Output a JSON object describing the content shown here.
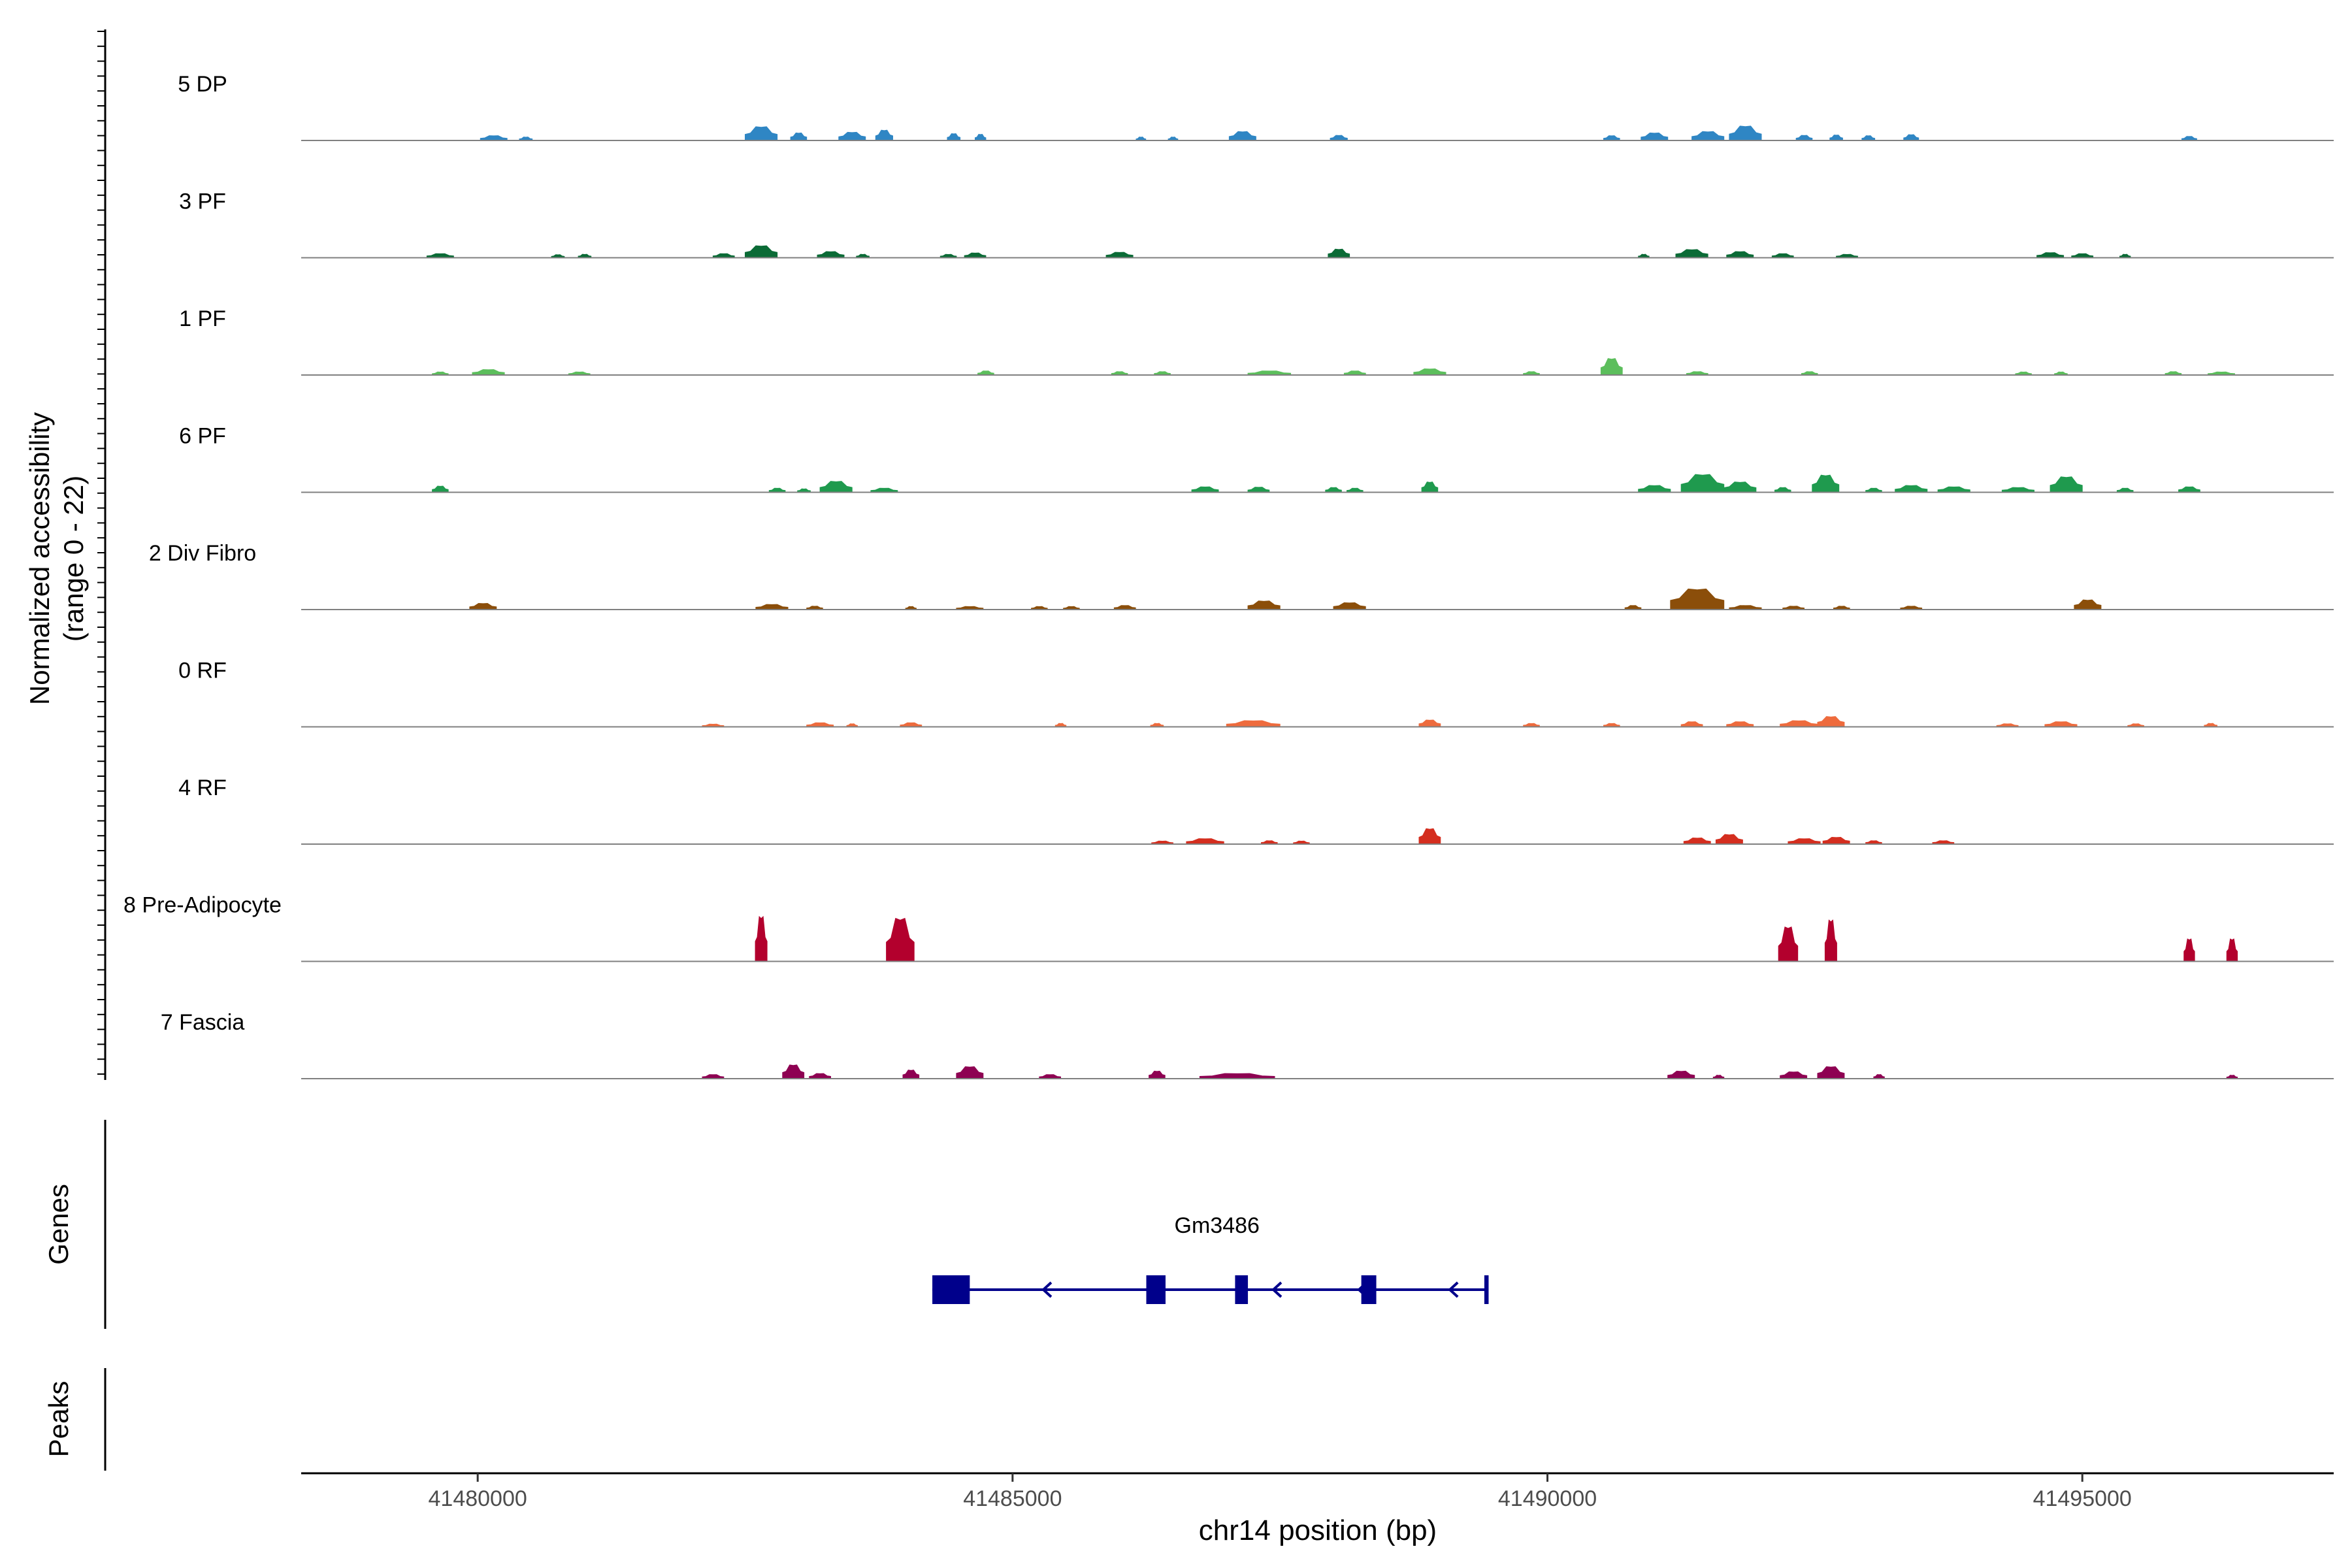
{
  "chart_data": {
    "type": "coverage-track",
    "title": "",
    "ylabel_line1": "Normalized accessibility",
    "ylabel_line2": "(range 0 - 22)",
    "ylim": [
      0,
      22
    ],
    "xlabel": "chr14 position (bp)",
    "xlim": [
      41478350,
      41497350
    ],
    "xticks": [
      41480000,
      41485000,
      41490000,
      41495000
    ],
    "tracks": [
      {
        "name": "5 DP",
        "color": "#2f86c4",
        "peaks": [
          [
            41480150,
            1.4,
            250
          ],
          [
            41480450,
            1.0,
            120
          ],
          [
            41482650,
            4.0,
            300
          ],
          [
            41483000,
            2.2,
            150
          ],
          [
            41483500,
            2.4,
            250
          ],
          [
            41483800,
            3.0,
            160
          ],
          [
            41484450,
            2.0,
            120
          ],
          [
            41484700,
            1.8,
            100
          ],
          [
            41486200,
            1.0,
            90
          ],
          [
            41486500,
            1.0,
            90
          ],
          [
            41487150,
            2.6,
            250
          ],
          [
            41488050,
            1.5,
            160
          ],
          [
            41490600,
            1.4,
            150
          ],
          [
            41491000,
            2.2,
            250
          ],
          [
            41491500,
            2.6,
            300
          ],
          [
            41491850,
            4.2,
            300
          ],
          [
            41492400,
            1.5,
            150
          ],
          [
            41492700,
            1.6,
            120
          ],
          [
            41493000,
            1.4,
            120
          ],
          [
            41493400,
            1.7,
            140
          ],
          [
            41496000,
            1.2,
            140
          ]
        ]
      },
      {
        "name": "3 PF",
        "color": "#0b6b36",
        "peaks": [
          [
            41479650,
            1.2,
            250
          ],
          [
            41480750,
            0.9,
            120
          ],
          [
            41481000,
            1.0,
            120
          ],
          [
            41482300,
            1.2,
            200
          ],
          [
            41482650,
            3.5,
            300
          ],
          [
            41483300,
            1.8,
            250
          ],
          [
            41483600,
            1.0,
            120
          ],
          [
            41484400,
            1.0,
            150
          ],
          [
            41484650,
            1.4,
            200
          ],
          [
            41486000,
            1.6,
            250
          ],
          [
            41488050,
            2.5,
            200
          ],
          [
            41490900,
            1.0,
            100
          ],
          [
            41491350,
            2.4,
            300
          ],
          [
            41491800,
            1.8,
            250
          ],
          [
            41492200,
            1.2,
            200
          ],
          [
            41492800,
            1.0,
            200
          ],
          [
            41494700,
            1.5,
            250
          ],
          [
            41495000,
            1.2,
            200
          ],
          [
            41495400,
            1.0,
            100
          ]
        ]
      },
      {
        "name": "1 PF",
        "color": "#5cbe5c",
        "peaks": [
          [
            41479650,
            0.9,
            150
          ],
          [
            41480100,
            1.6,
            300
          ],
          [
            41480950,
            0.9,
            200
          ],
          [
            41484750,
            1.2,
            150
          ],
          [
            41486000,
            1.0,
            150
          ],
          [
            41486400,
            1.0,
            150
          ],
          [
            41487400,
            1.2,
            400
          ],
          [
            41488200,
            1.2,
            200
          ],
          [
            41488900,
            1.8,
            300
          ],
          [
            41489850,
            1.0,
            150
          ],
          [
            41490600,
            4.8,
            200
          ],
          [
            41491400,
            1.0,
            200
          ],
          [
            41492450,
            1.0,
            150
          ],
          [
            41494450,
            0.9,
            150
          ],
          [
            41494800,
            0.9,
            120
          ],
          [
            41495850,
            1.0,
            150
          ],
          [
            41496300,
            0.9,
            250
          ]
        ]
      },
      {
        "name": "6 PF",
        "color": "#1f9a4e",
        "peaks": [
          [
            41479650,
            1.8,
            150
          ],
          [
            41482800,
            1.2,
            150
          ],
          [
            41483050,
            1.0,
            120
          ],
          [
            41483350,
            3.2,
            300
          ],
          [
            41483800,
            1.2,
            250
          ],
          [
            41486800,
            1.6,
            250
          ],
          [
            41487300,
            1.5,
            200
          ],
          [
            41488000,
            1.4,
            150
          ],
          [
            41488200,
            1.2,
            150
          ],
          [
            41488900,
            3.0,
            150
          ],
          [
            41491000,
            2.0,
            300
          ],
          [
            41491450,
            5.2,
            400
          ],
          [
            41491800,
            3.0,
            300
          ],
          [
            41492200,
            1.4,
            150
          ],
          [
            41492600,
            5.0,
            250
          ],
          [
            41493050,
            1.2,
            150
          ],
          [
            41493400,
            2.0,
            300
          ],
          [
            41493800,
            1.6,
            300
          ],
          [
            41494400,
            1.4,
            300
          ],
          [
            41494850,
            4.5,
            300
          ],
          [
            41495400,
            1.2,
            150
          ],
          [
            41496000,
            1.6,
            200
          ]
        ]
      },
      {
        "name": "2 Div Fibro",
        "color": "#8b4e0a",
        "peaks": [
          [
            41480050,
            1.8,
            250
          ],
          [
            41482750,
            1.5,
            300
          ],
          [
            41483150,
            1.0,
            150
          ],
          [
            41484050,
            0.9,
            100
          ],
          [
            41484600,
            0.9,
            250
          ],
          [
            41485250,
            0.9,
            150
          ],
          [
            41485550,
            0.9,
            150
          ],
          [
            41486050,
            1.2,
            200
          ],
          [
            41487350,
            2.5,
            300
          ],
          [
            41488150,
            2.0,
            300
          ],
          [
            41490800,
            1.2,
            150
          ],
          [
            41491400,
            6.0,
            500
          ],
          [
            41491850,
            1.2,
            300
          ],
          [
            41492300,
            1.0,
            200
          ],
          [
            41492750,
            1.0,
            150
          ],
          [
            41493400,
            1.0,
            200
          ],
          [
            41495050,
            2.8,
            250
          ]
        ]
      },
      {
        "name": "0 RF",
        "color": "#ee6b3d",
        "peaks": [
          [
            41482200,
            0.8,
            200
          ],
          [
            41483200,
            1.2,
            250
          ],
          [
            41483500,
            0.9,
            100
          ],
          [
            41484050,
            1.2,
            200
          ],
          [
            41485450,
            1.0,
            100
          ],
          [
            41486350,
            1.0,
            120
          ],
          [
            41487250,
            1.8,
            500
          ],
          [
            41488900,
            2.0,
            200
          ],
          [
            41489850,
            1.0,
            150
          ],
          [
            41490600,
            1.0,
            150
          ],
          [
            41491350,
            1.5,
            200
          ],
          [
            41491800,
            1.5,
            250
          ],
          [
            41492350,
            1.8,
            350
          ],
          [
            41492650,
            3.0,
            250
          ],
          [
            41494300,
            0.9,
            200
          ],
          [
            41494800,
            1.5,
            300
          ],
          [
            41495500,
            0.9,
            150
          ],
          [
            41496200,
            1.0,
            120
          ]
        ]
      },
      {
        "name": "4 RF",
        "color": "#d42e1f",
        "peaks": [
          [
            41486400,
            0.9,
            200
          ],
          [
            41486800,
            1.6,
            350
          ],
          [
            41487400,
            1.0,
            150
          ],
          [
            41487700,
            0.9,
            150
          ],
          [
            41488900,
            4.5,
            200
          ],
          [
            41491400,
            1.8,
            250
          ],
          [
            41491700,
            2.8,
            250
          ],
          [
            41492400,
            1.6,
            300
          ],
          [
            41492700,
            2.0,
            250
          ],
          [
            41493050,
            1.0,
            150
          ],
          [
            41493700,
            1.0,
            200
          ]
        ]
      },
      {
        "name": "8 Pre-Adipocyte",
        "color": "#b3002d",
        "peaks": [
          [
            41482650,
            13.0,
            110
          ],
          [
            41483950,
            12.5,
            260
          ],
          [
            41492250,
            10.0,
            180
          ],
          [
            41492650,
            12.0,
            110
          ],
          [
            41496000,
            6.5,
            100
          ],
          [
            41496400,
            6.5,
            100
          ]
        ]
      },
      {
        "name": "7 Fascia",
        "color": "#8e0152",
        "peaks": [
          [
            41482200,
            1.2,
            200
          ],
          [
            41482950,
            4.0,
            200
          ],
          [
            41483200,
            1.5,
            200
          ],
          [
            41484050,
            2.5,
            150
          ],
          [
            41484600,
            3.5,
            250
          ],
          [
            41485350,
            1.2,
            200
          ],
          [
            41486350,
            2.2,
            150
          ],
          [
            41487100,
            1.5,
            700
          ],
          [
            41491250,
            2.2,
            250
          ],
          [
            41491600,
            1.0,
            100
          ],
          [
            41492300,
            2.0,
            250
          ],
          [
            41492650,
            3.5,
            250
          ],
          [
            41493100,
            1.2,
            100
          ],
          [
            41496400,
            1.0,
            100
          ]
        ]
      }
    ],
    "gene_label": "Genes",
    "peaks_label": "Peaks",
    "gene": {
      "name": "Gm3486",
      "start": 41484250,
      "end": 41489450,
      "strand": "-",
      "exons": [
        [
          41484250,
          41484600
        ],
        [
          41486250,
          41486430
        ],
        [
          41487080,
          41487200
        ],
        [
          41488260,
          41488400
        ],
        [
          41489410,
          41489450
        ]
      ],
      "arrows": [
        41485300,
        41487450,
        41488250,
        41489100
      ],
      "color": "#00008b"
    }
  }
}
